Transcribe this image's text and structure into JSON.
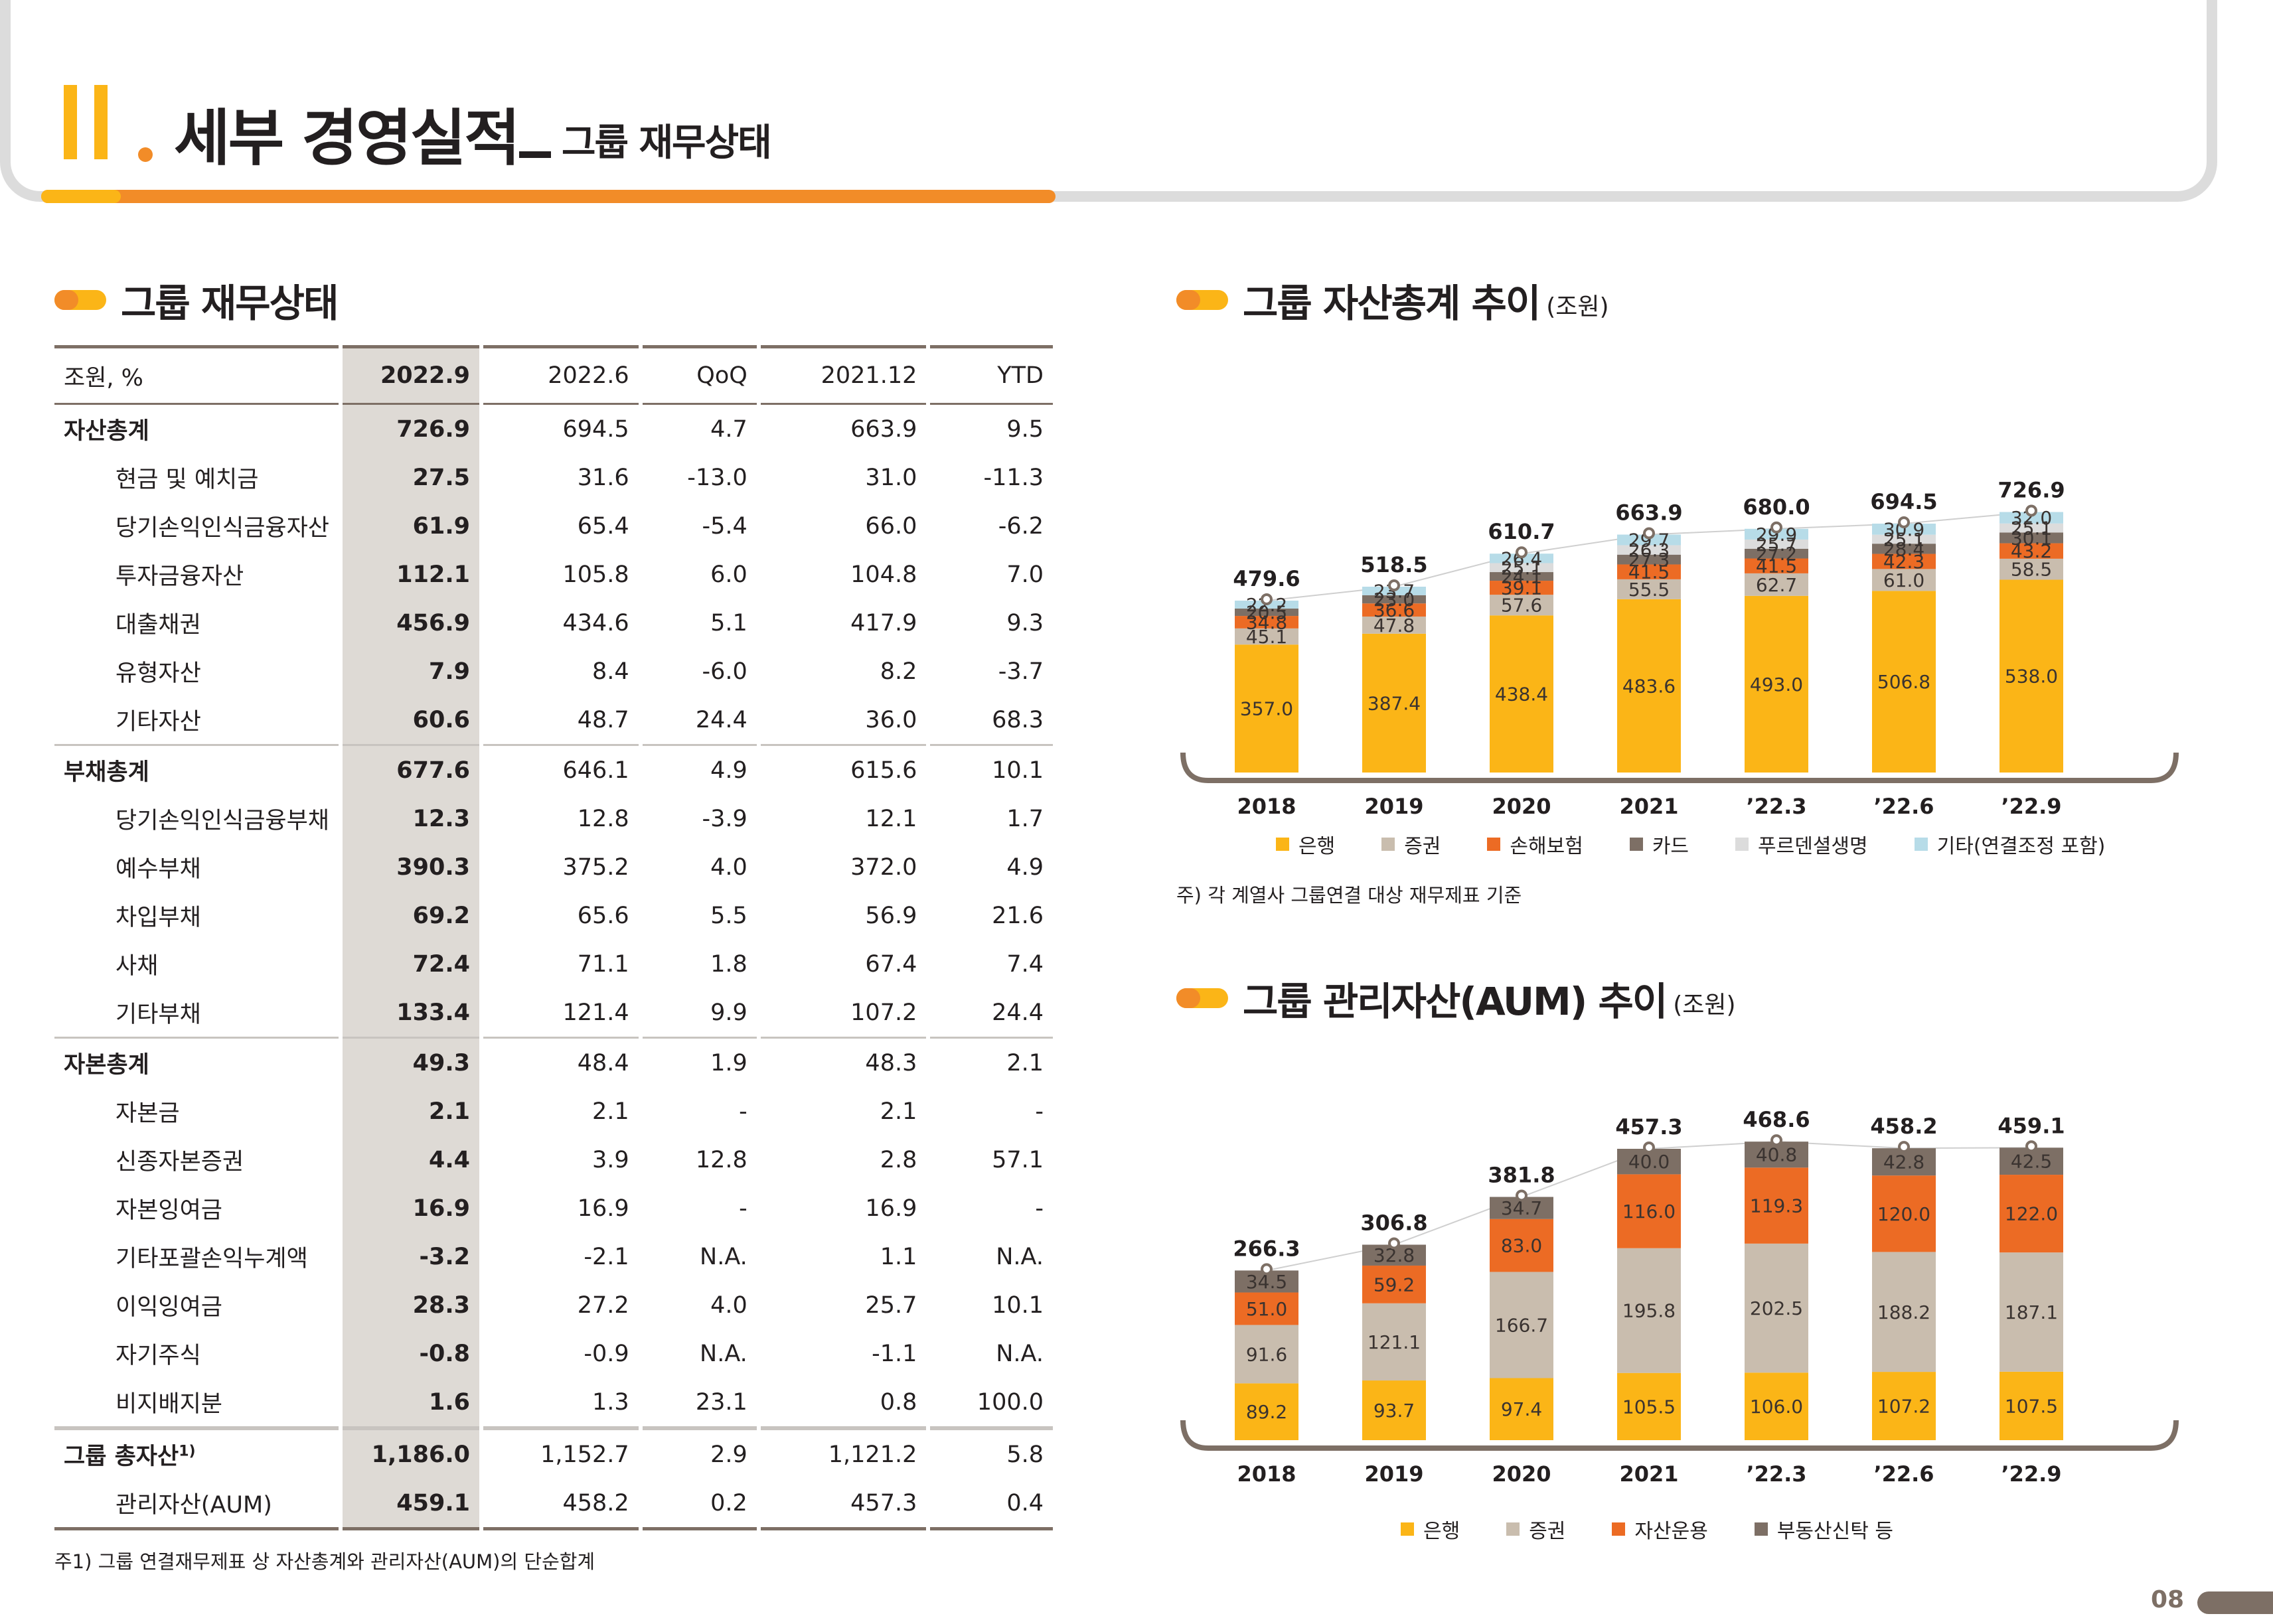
{
  "header": {
    "roman": "II",
    "title": "세부 경영실적",
    "subtitle": "그룹 재무상태"
  },
  "colors": {
    "bank": "#fbb517",
    "securities": "#c9bdae",
    "insurance": "#ec6b24",
    "card": "#7d6f65",
    "prudential": "#dcdcdc",
    "other": "#b7dce8",
    "accent": "#f28c28",
    "brown": "#7d6f65"
  },
  "table_section": {
    "title": "그룹 재무상태"
  },
  "table": {
    "headers": [
      "조원, %",
      "2022.9",
      "2022.6",
      "QoQ",
      "2021.12",
      "YTD"
    ],
    "rows": [
      {
        "label": "자산총계",
        "level": "top",
        "values": [
          "726.9",
          "694.5",
          "4.7",
          "663.9",
          "9.5"
        ]
      },
      {
        "label": "현금 및 예치금",
        "level": "sub",
        "values": [
          "27.5",
          "31.6",
          "-13.0",
          "31.0",
          "-11.3"
        ]
      },
      {
        "label": "당기손익인식금융자산",
        "level": "sub",
        "values": [
          "61.9",
          "65.4",
          "-5.4",
          "66.0",
          "-6.2"
        ]
      },
      {
        "label": "투자금융자산",
        "level": "sub",
        "values": [
          "112.1",
          "105.8",
          "6.0",
          "104.8",
          "7.0"
        ]
      },
      {
        "label": "대출채권",
        "level": "sub",
        "values": [
          "456.9",
          "434.6",
          "5.1",
          "417.9",
          "9.3"
        ]
      },
      {
        "label": "유형자산",
        "level": "sub",
        "values": [
          "7.9",
          "8.4",
          "-6.0",
          "8.2",
          "-3.7"
        ]
      },
      {
        "label": "기타자산",
        "level": "sub",
        "values": [
          "60.6",
          "48.7",
          "24.4",
          "36.0",
          "68.3"
        ]
      },
      {
        "label": "부채총계",
        "level": "top",
        "values": [
          "677.6",
          "646.1",
          "4.9",
          "615.6",
          "10.1"
        ]
      },
      {
        "label": "당기손익인식금융부채",
        "level": "sub",
        "values": [
          "12.3",
          "12.8",
          "-3.9",
          "12.1",
          "1.7"
        ]
      },
      {
        "label": "예수부채",
        "level": "sub",
        "values": [
          "390.3",
          "375.2",
          "4.0",
          "372.0",
          "4.9"
        ]
      },
      {
        "label": "차입부채",
        "level": "sub",
        "values": [
          "69.2",
          "65.6",
          "5.5",
          "56.9",
          "21.6"
        ]
      },
      {
        "label": "사채",
        "level": "sub",
        "values": [
          "72.4",
          "71.1",
          "1.8",
          "67.4",
          "7.4"
        ]
      },
      {
        "label": "기타부채",
        "level": "sub",
        "values": [
          "133.4",
          "121.4",
          "9.9",
          "107.2",
          "24.4"
        ]
      },
      {
        "label": "자본총계",
        "level": "top",
        "values": [
          "49.3",
          "48.4",
          "1.9",
          "48.3",
          "2.1"
        ]
      },
      {
        "label": "자본금",
        "level": "sub",
        "values": [
          "2.1",
          "2.1",
          "-",
          "2.1",
          "-"
        ]
      },
      {
        "label": "신종자본증권",
        "level": "sub",
        "values": [
          "4.4",
          "3.9",
          "12.8",
          "2.8",
          "57.1"
        ]
      },
      {
        "label": "자본잉여금",
        "level": "sub",
        "values": [
          "16.9",
          "16.9",
          "-",
          "16.9",
          "-"
        ]
      },
      {
        "label": "기타포괄손익누계액",
        "level": "sub",
        "values": [
          "-3.2",
          "-2.1",
          "N.A.",
          "1.1",
          "N.A."
        ]
      },
      {
        "label": "이익잉여금",
        "level": "sub",
        "values": [
          "28.3",
          "27.2",
          "4.0",
          "25.7",
          "10.1"
        ]
      },
      {
        "label": "자기주식",
        "level": "sub",
        "values": [
          "-0.8",
          "-0.9",
          "N.A.",
          "-1.1",
          "N.A."
        ]
      },
      {
        "label": "비지배지분",
        "level": "sub",
        "values": [
          "1.6",
          "1.3",
          "23.1",
          "0.8",
          "100.0"
        ]
      },
      {
        "label": "그룹 총자산",
        "sup": "1)",
        "level": "sum",
        "values": [
          "1,186.0",
          "1,152.7",
          "2.9",
          "1,121.2",
          "5.8"
        ]
      },
      {
        "label": "관리자산(AUM)",
        "level": "sub",
        "values": [
          "459.1",
          "458.2",
          "0.2",
          "457.3",
          "0.4"
        ]
      }
    ],
    "footnote": "주1) 그룹 연결재무제표 상 자산총계와 관리자산(AUM)의 단순합계"
  },
  "chart_data": [
    {
      "type": "bar",
      "stacked": true,
      "title": "그룹 자산총계 추이",
      "unit": "(조원)",
      "categories": [
        "2018",
        "2019",
        "2020",
        "2021",
        "’22.3",
        "’22.6",
        "’22.9"
      ],
      "totals": [
        "479.6",
        "518.5",
        "610.7",
        "663.9",
        "680.0",
        "694.5",
        "726.9"
      ],
      "series": [
        {
          "name": "은행",
          "color": "#fbb517",
          "values": [
            357.0,
            387.4,
            438.4,
            483.6,
            493.0,
            506.8,
            538.0
          ]
        },
        {
          "name": "증권",
          "color": "#c9bdae",
          "values": [
            45.1,
            47.8,
            57.6,
            55.5,
            62.7,
            61.0,
            58.5
          ]
        },
        {
          "name": "손해보험",
          "color": "#ec6b24",
          "values": [
            34.8,
            36.6,
            39.1,
            41.5,
            41.5,
            42.3,
            43.2
          ]
        },
        {
          "name": "카드",
          "color": "#7d6f65",
          "values": [
            20.5,
            23.0,
            24.1,
            27.3,
            27.2,
            28.4,
            30.1
          ]
        },
        {
          "name": "푸르덴셜생명",
          "color": "#dcdcdc",
          "values": [
            null,
            null,
            25.1,
            26.3,
            25.7,
            25.1,
            25.1
          ]
        },
        {
          "name": "기타(연결조정 포함)",
          "color": "#b7dce8",
          "values": [
            22.2,
            23.7,
            26.4,
            29.7,
            29.9,
            30.9,
            32.0
          ]
        }
      ],
      "footnote": "주) 각 계열사 그룹연결 대상 재무제표 기준"
    },
    {
      "type": "bar",
      "stacked": true,
      "title": "그룹 관리자산(AUM) 추이",
      "unit": "(조원)",
      "categories": [
        "2018",
        "2019",
        "2020",
        "2021",
        "’22.3",
        "’22.6",
        "’22.9"
      ],
      "totals": [
        "266.3",
        "306.8",
        "381.8",
        "457.3",
        "468.6",
        "458.2",
        "459.1"
      ],
      "series": [
        {
          "name": "은행",
          "color": "#fbb517",
          "values": [
            89.2,
            93.7,
            97.4,
            105.5,
            106.0,
            107.2,
            107.5
          ]
        },
        {
          "name": "증권",
          "color": "#c9bdae",
          "values": [
            91.6,
            121.1,
            166.7,
            195.8,
            202.5,
            188.2,
            187.1
          ]
        },
        {
          "name": "자산운용",
          "color": "#ec6b24",
          "values": [
            51.0,
            59.2,
            83.0,
            116.0,
            119.3,
            120.0,
            122.0
          ]
        },
        {
          "name": "부동산신탁 등",
          "color": "#7d6f65",
          "values": [
            34.5,
            32.8,
            34.7,
            40.0,
            40.8,
            42.8,
            42.5
          ]
        }
      ]
    }
  ],
  "page_number": "08"
}
